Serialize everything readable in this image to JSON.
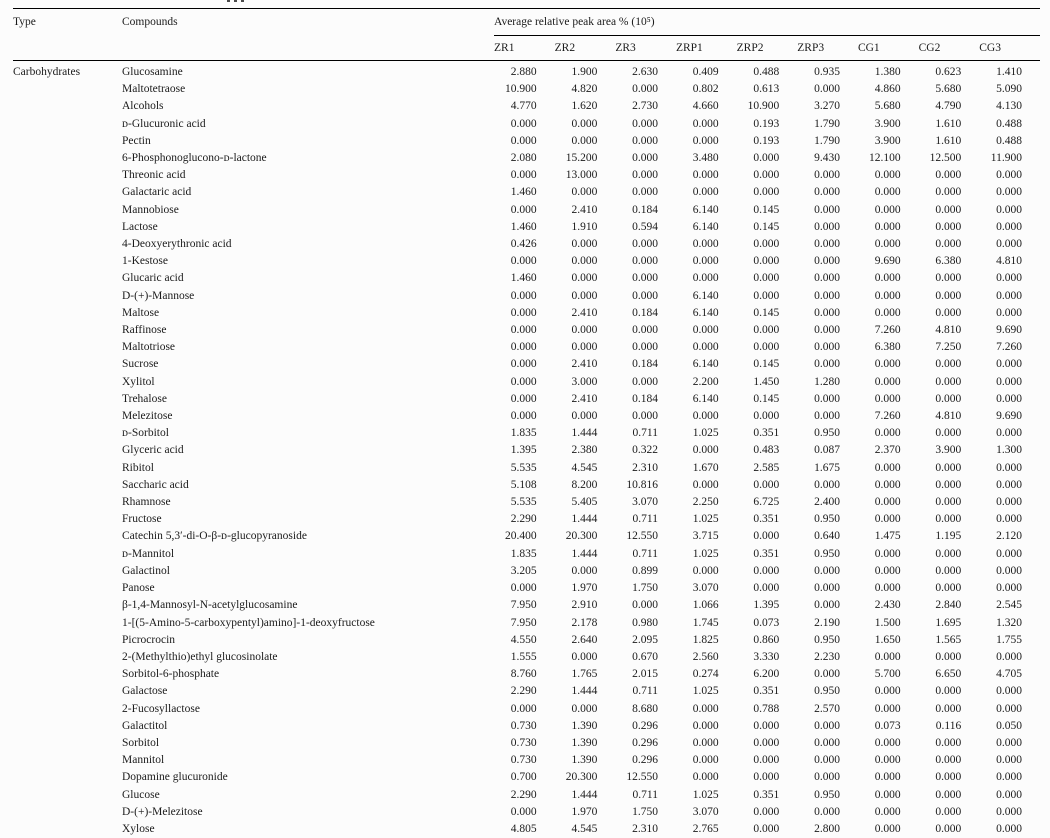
{
  "colors": {
    "background": "#fcfcfc",
    "text": "#1b1b1b",
    "rule": "#000000"
  },
  "table": {
    "headers": {
      "type": "Type",
      "compounds": "Compounds",
      "group": "Average relative peak area % (10⁵)",
      "samples": [
        "ZR1",
        "ZR2",
        "ZR3",
        "ZRP1",
        "ZRP2",
        "ZRP3",
        "CG1",
        "CG2",
        "CG3"
      ]
    },
    "rows": [
      {
        "type": "Carbohydrates",
        "compound": "Glucosamine",
        "values": [
          "2.880",
          "1.900",
          "2.630",
          "0.409",
          "0.488",
          "0.935",
          "1.380",
          "0.623",
          "1.410"
        ]
      },
      {
        "type": "",
        "compound": "Maltotetraose",
        "values": [
          "10.900",
          "4.820",
          "0.000",
          "0.802",
          "0.613",
          "0.000",
          "4.860",
          "5.680",
          "5.090"
        ]
      },
      {
        "type": "",
        "compound": "Alcohols",
        "values": [
          "4.770",
          "1.620",
          "2.730",
          "4.660",
          "10.900",
          "3.270",
          "5.680",
          "4.790",
          "4.130"
        ]
      },
      {
        "type": "",
        "compound": "ᴅ-Glucuronic acid",
        "values": [
          "0.000",
          "0.000",
          "0.000",
          "0.000",
          "0.193",
          "1.790",
          "3.900",
          "1.610",
          "0.488"
        ]
      },
      {
        "type": "",
        "compound": "Pectin",
        "values": [
          "0.000",
          "0.000",
          "0.000",
          "0.000",
          "0.193",
          "1.790",
          "3.900",
          "1.610",
          "0.488"
        ]
      },
      {
        "type": "",
        "compound": "6-Phosphonoglucono-ᴅ-lactone",
        "values": [
          "2.080",
          "15.200",
          "0.000",
          "3.480",
          "0.000",
          "9.430",
          "12.100",
          "12.500",
          "11.900"
        ]
      },
      {
        "type": "",
        "compound": "Threonic acid",
        "values": [
          "0.000",
          "13.000",
          "0.000",
          "0.000",
          "0.000",
          "0.000",
          "0.000",
          "0.000",
          "0.000"
        ]
      },
      {
        "type": "",
        "compound": "Galactaric acid",
        "values": [
          "1.460",
          "0.000",
          "0.000",
          "0.000",
          "0.000",
          "0.000",
          "0.000",
          "0.000",
          "0.000"
        ]
      },
      {
        "type": "",
        "compound": "Mannobiose",
        "values": [
          "0.000",
          "2.410",
          "0.184",
          "6.140",
          "0.145",
          "0.000",
          "0.000",
          "0.000",
          "0.000"
        ]
      },
      {
        "type": "",
        "compound": "Lactose",
        "values": [
          "1.460",
          "1.910",
          "0.594",
          "6.140",
          "0.145",
          "0.000",
          "0.000",
          "0.000",
          "0.000"
        ]
      },
      {
        "type": "",
        "compound": "4-Deoxyerythronic acid",
        "values": [
          "0.426",
          "0.000",
          "0.000",
          "0.000",
          "0.000",
          "0.000",
          "0.000",
          "0.000",
          "0.000"
        ]
      },
      {
        "type": "",
        "compound": "1-Kestose",
        "values": [
          "0.000",
          "0.000",
          "0.000",
          "0.000",
          "0.000",
          "0.000",
          "9.690",
          "6.380",
          "4.810"
        ]
      },
      {
        "type": "",
        "compound": "Glucaric acid",
        "values": [
          "1.460",
          "0.000",
          "0.000",
          "0.000",
          "0.000",
          "0.000",
          "0.000",
          "0.000",
          "0.000"
        ]
      },
      {
        "type": "",
        "compound": "D-(+)-Mannose",
        "values": [
          "0.000",
          "0.000",
          "0.000",
          "6.140",
          "0.000",
          "0.000",
          "0.000",
          "0.000",
          "0.000"
        ]
      },
      {
        "type": "",
        "compound": "Maltose",
        "values": [
          "0.000",
          "2.410",
          "0.184",
          "6.140",
          "0.145",
          "0.000",
          "0.000",
          "0.000",
          "0.000"
        ]
      },
      {
        "type": "",
        "compound": "Raffinose",
        "values": [
          "0.000",
          "0.000",
          "0.000",
          "0.000",
          "0.000",
          "0.000",
          "7.260",
          "4.810",
          "9.690"
        ]
      },
      {
        "type": "",
        "compound": "Maltotriose",
        "values": [
          "0.000",
          "0.000",
          "0.000",
          "0.000",
          "0.000",
          "0.000",
          "6.380",
          "7.250",
          "7.260"
        ]
      },
      {
        "type": "",
        "compound": "Sucrose",
        "values": [
          "0.000",
          "2.410",
          "0.184",
          "6.140",
          "0.145",
          "0.000",
          "0.000",
          "0.000",
          "0.000"
        ]
      },
      {
        "type": "",
        "compound": "Xylitol",
        "values": [
          "0.000",
          "3.000",
          "0.000",
          "2.200",
          "1.450",
          "1.280",
          "0.000",
          "0.000",
          "0.000"
        ]
      },
      {
        "type": "",
        "compound": "Trehalose",
        "values": [
          "0.000",
          "2.410",
          "0.184",
          "6.140",
          "0.145",
          "0.000",
          "0.000",
          "0.000",
          "0.000"
        ]
      },
      {
        "type": "",
        "compound": "Melezitose",
        "values": [
          "0.000",
          "0.000",
          "0.000",
          "0.000",
          "0.000",
          "0.000",
          "7.260",
          "4.810",
          "9.690"
        ]
      },
      {
        "type": "",
        "compound": "ᴅ-Sorbitol",
        "values": [
          "1.835",
          "1.444",
          "0.711",
          "1.025",
          "0.351",
          "0.950",
          "0.000",
          "0.000",
          "0.000"
        ]
      },
      {
        "type": "",
        "compound": "Glyceric acid",
        "values": [
          "1.395",
          "2.380",
          "0.322",
          "0.000",
          "0.483",
          "0.087",
          "2.370",
          "3.900",
          "1.300"
        ]
      },
      {
        "type": "",
        "compound": "Ribitol",
        "values": [
          "5.535",
          "4.545",
          "2.310",
          "1.670",
          "2.585",
          "1.675",
          "0.000",
          "0.000",
          "0.000"
        ]
      },
      {
        "type": "",
        "compound": "Saccharic acid",
        "values": [
          "5.108",
          "8.200",
          "10.816",
          "0.000",
          "0.000",
          "0.000",
          "0.000",
          "0.000",
          "0.000"
        ]
      },
      {
        "type": "",
        "compound": "Rhamnose",
        "values": [
          "5.535",
          "5.405",
          "3.070",
          "2.250",
          "6.725",
          "2.400",
          "0.000",
          "0.000",
          "0.000"
        ]
      },
      {
        "type": "",
        "compound": "Fructose",
        "values": [
          "2.290",
          "1.444",
          "0.711",
          "1.025",
          "0.351",
          "0.950",
          "0.000",
          "0.000",
          "0.000"
        ]
      },
      {
        "type": "",
        "compound": "Catechin 5,3′-di-O-β-ᴅ-glucopyranoside",
        "values": [
          "20.400",
          "20.300",
          "12.550",
          "3.715",
          "0.000",
          "0.640",
          "1.475",
          "1.195",
          "2.120"
        ]
      },
      {
        "type": "",
        "compound": "ᴅ-Mannitol",
        "values": [
          "1.835",
          "1.444",
          "0.711",
          "1.025",
          "0.351",
          "0.950",
          "0.000",
          "0.000",
          "0.000"
        ]
      },
      {
        "type": "",
        "compound": "Galactinol",
        "values": [
          "3.205",
          "0.000",
          "0.899",
          "0.000",
          "0.000",
          "0.000",
          "0.000",
          "0.000",
          "0.000"
        ]
      },
      {
        "type": "",
        "compound": "Panose",
        "values": [
          "0.000",
          "1.970",
          "1.750",
          "3.070",
          "0.000",
          "0.000",
          "0.000",
          "0.000",
          "0.000"
        ]
      },
      {
        "type": "",
        "compound": "β-1,4-Mannosyl-N-acetylglucosamine",
        "values": [
          "7.950",
          "2.910",
          "0.000",
          "1.066",
          "1.395",
          "0.000",
          "2.430",
          "2.840",
          "2.545"
        ]
      },
      {
        "type": "",
        "compound": "1-[(5-Amino-5-carboxypentyl)amino]-1-deoxyfructose",
        "values": [
          "7.950",
          "2.178",
          "0.980",
          "1.745",
          "0.073",
          "2.190",
          "1.500",
          "1.695",
          "1.320"
        ]
      },
      {
        "type": "",
        "compound": "Picrocrocin",
        "values": [
          "4.550",
          "2.640",
          "2.095",
          "1.825",
          "0.860",
          "0.950",
          "1.650",
          "1.565",
          "1.755"
        ]
      },
      {
        "type": "",
        "compound": "2-(Methylthio)ethyl glucosinolate",
        "values": [
          "1.555",
          "0.000",
          "0.670",
          "2.560",
          "3.330",
          "2.230",
          "0.000",
          "0.000",
          "0.000"
        ]
      },
      {
        "type": "",
        "compound": "Sorbitol-6-phosphate",
        "values": [
          "8.760",
          "1.765",
          "2.015",
          "0.274",
          "6.200",
          "0.000",
          "5.700",
          "6.650",
          "4.705"
        ]
      },
      {
        "type": "",
        "compound": "Galactose",
        "values": [
          "2.290",
          "1.444",
          "0.711",
          "1.025",
          "0.351",
          "0.950",
          "0.000",
          "0.000",
          "0.000"
        ]
      },
      {
        "type": "",
        "compound": "2-Fucosyllactose",
        "values": [
          "0.000",
          "0.000",
          "8.680",
          "0.000",
          "0.788",
          "2.570",
          "0.000",
          "0.000",
          "0.000"
        ]
      },
      {
        "type": "",
        "compound": "Galactitol",
        "values": [
          "0.730",
          "1.390",
          "0.296",
          "0.000",
          "0.000",
          "0.000",
          "0.073",
          "0.116",
          "0.050"
        ]
      },
      {
        "type": "",
        "compound": "Sorbitol",
        "values": [
          "0.730",
          "1.390",
          "0.296",
          "0.000",
          "0.000",
          "0.000",
          "0.000",
          "0.000",
          "0.000"
        ]
      },
      {
        "type": "",
        "compound": "Mannitol",
        "values": [
          "0.730",
          "1.390",
          "0.296",
          "0.000",
          "0.000",
          "0.000",
          "0.000",
          "0.000",
          "0.000"
        ]
      },
      {
        "type": "",
        "compound": "Dopamine glucuronide",
        "values": [
          "0.700",
          "20.300",
          "12.550",
          "0.000",
          "0.000",
          "0.000",
          "0.000",
          "0.000",
          "0.000"
        ]
      },
      {
        "type": "",
        "compound": "Glucose",
        "values": [
          "2.290",
          "1.444",
          "0.711",
          "1.025",
          "0.351",
          "0.950",
          "0.000",
          "0.000",
          "0.000"
        ]
      },
      {
        "type": "",
        "compound": "D-(+)-Melezitose",
        "values": [
          "0.000",
          "1.970",
          "1.750",
          "3.070",
          "0.000",
          "0.000",
          "0.000",
          "0.000",
          "0.000"
        ]
      },
      {
        "type": "",
        "compound": "Xylose",
        "values": [
          "4.805",
          "4.545",
          "2.310",
          "2.765",
          "0.000",
          "2.800",
          "0.000",
          "0.000",
          "0.000"
        ]
      }
    ]
  }
}
